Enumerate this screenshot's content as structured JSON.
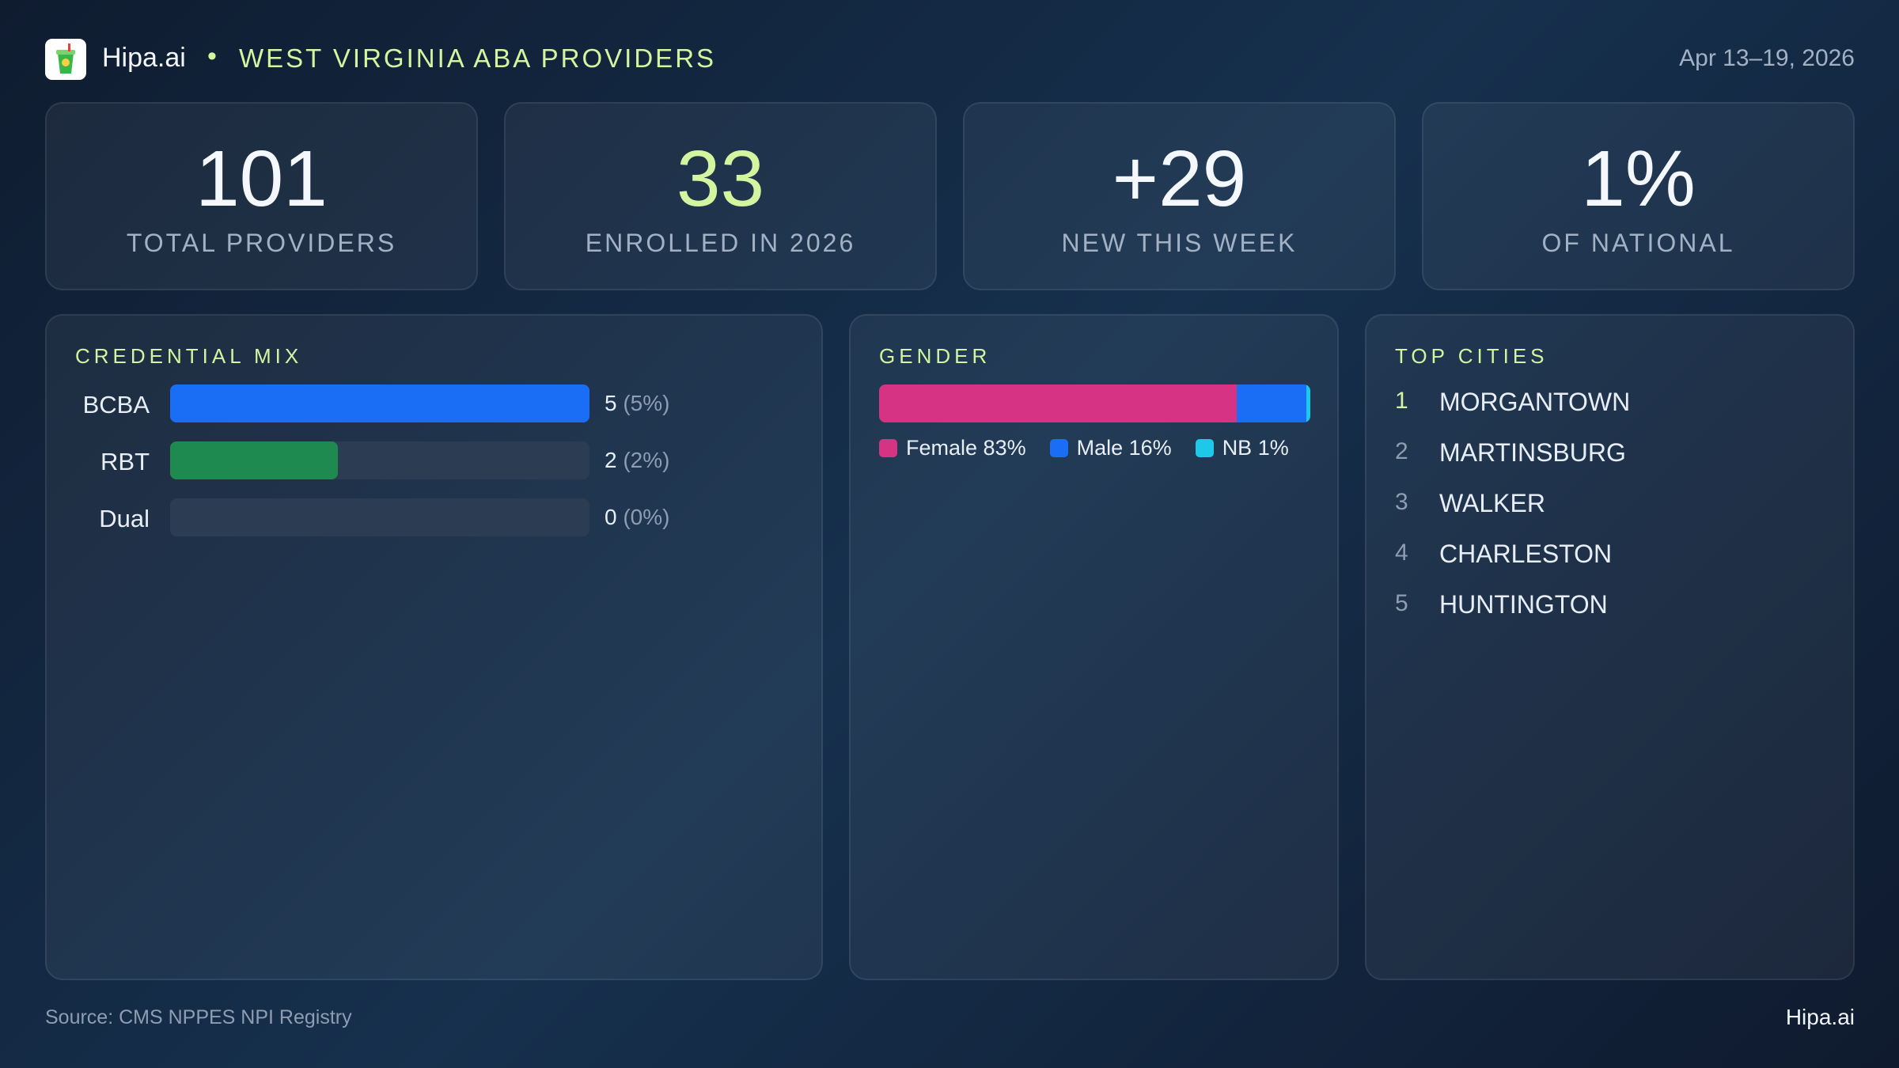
{
  "header": {
    "brand": "Hipa.ai",
    "title": "WEST VIRGINIA ABA PROVIDERS",
    "date": "Apr 13–19, 2026"
  },
  "kpis": [
    {
      "value": "101",
      "label": "TOTAL PROVIDERS",
      "accent": false
    },
    {
      "value": "33",
      "label": "ENROLLED IN 2026",
      "accent": true
    },
    {
      "value": "+29",
      "label": "NEW THIS WEEK",
      "accent": false
    },
    {
      "value": "1%",
      "label": "OF NATIONAL",
      "accent": false
    }
  ],
  "credential_mix": {
    "title": "CREDENTIAL MIX",
    "rows": [
      {
        "label": "BCBA",
        "count": 5,
        "share_label": "(5%)",
        "color": "#1a6ef5"
      },
      {
        "label": "RBT",
        "count": 2,
        "share_label": "(2%)",
        "color": "#1e8a50"
      },
      {
        "label": "Dual",
        "count": 0,
        "share_label": "(0%)",
        "color": "#8a5cf5"
      }
    ]
  },
  "gender": {
    "title": "GENDER",
    "series": [
      {
        "name": "Female",
        "value": 83,
        "value_label": "83%",
        "color": "#d63384"
      },
      {
        "name": "Male",
        "value": 16,
        "value_label": "16%",
        "color": "#1a6ef5"
      },
      {
        "name": "NB",
        "value": 1,
        "value_label": "1%",
        "color": "#1ec8e8"
      }
    ]
  },
  "top_cities": {
    "title": "TOP CITIES",
    "rows": [
      {
        "rank": 1,
        "name": "MORGANTOWN"
      },
      {
        "rank": 2,
        "name": "MARTINSBURG"
      },
      {
        "rank": 3,
        "name": "WALKER"
      },
      {
        "rank": 4,
        "name": "CHARLESTON"
      },
      {
        "rank": 5,
        "name": "HUNTINGTON"
      }
    ]
  },
  "footer": {
    "source": "Source: CMS NPPES NPI Registry",
    "brand": "Hipa.ai"
  }
}
